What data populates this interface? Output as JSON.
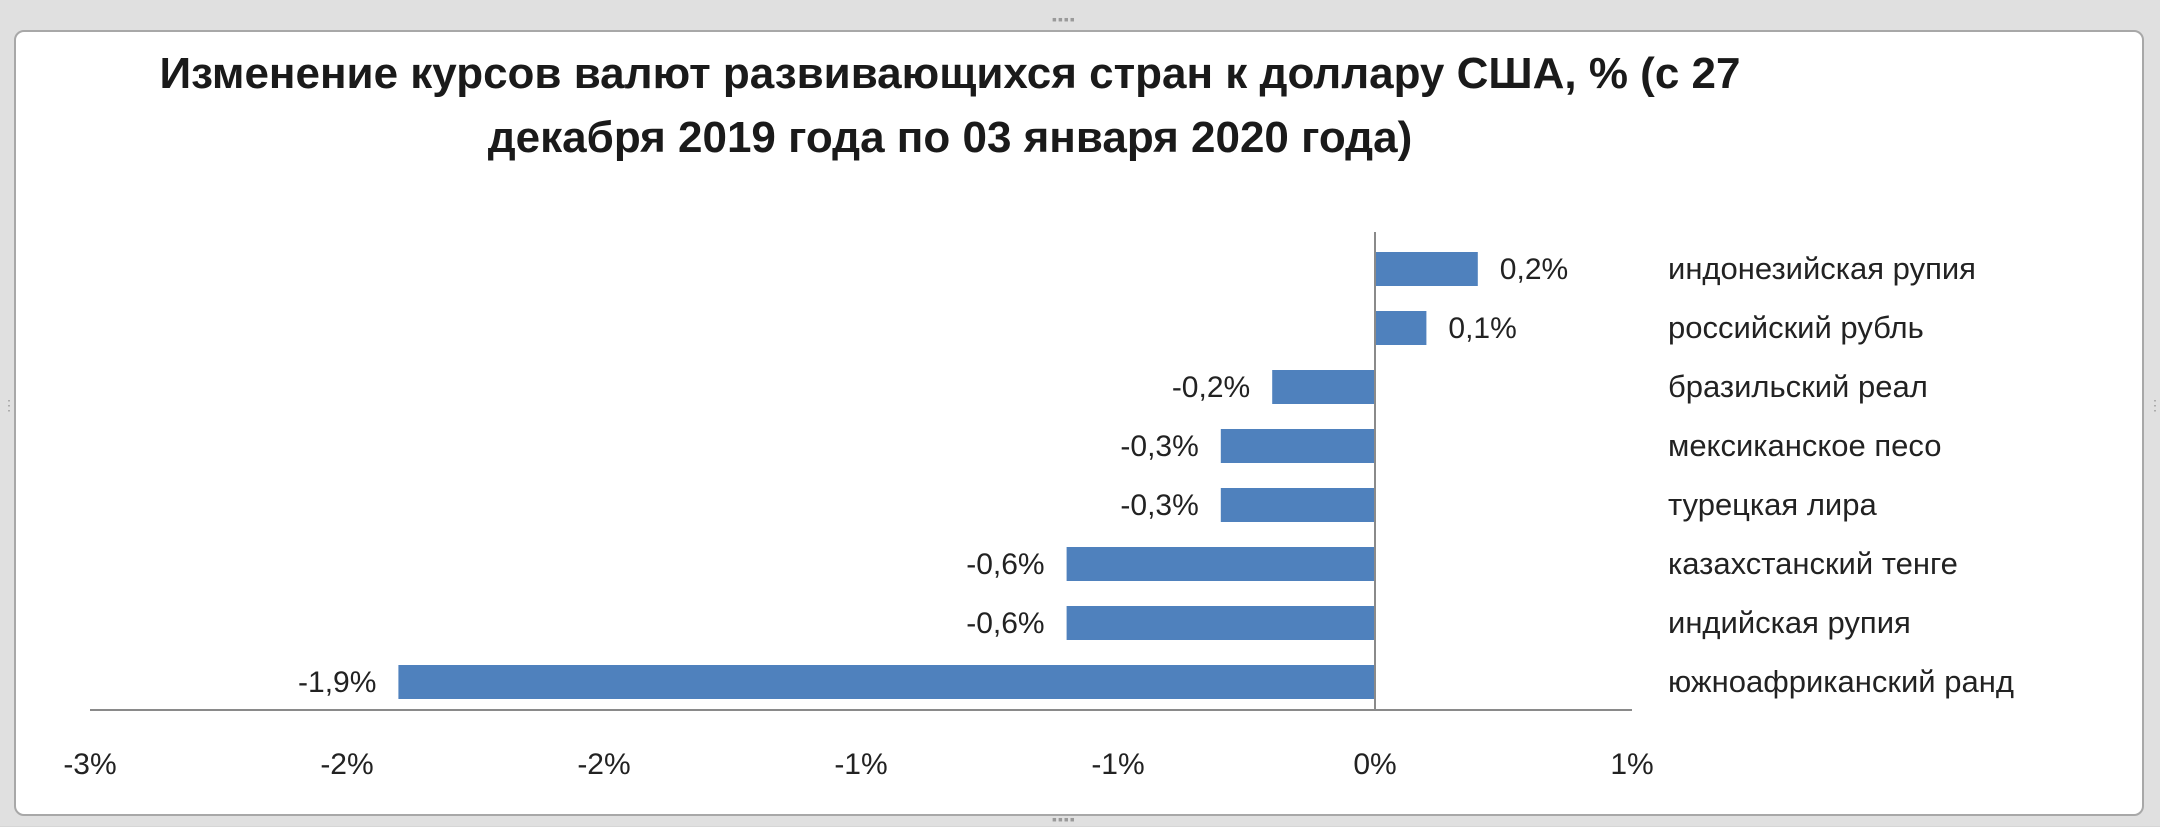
{
  "chart_data": {
    "type": "bar",
    "orientation": "horizontal",
    "title": "Изменение курсов валют развивающихся стран к доллару США, % (с 27 декабря 2019 года по 03 января 2020 года)",
    "title_lines": [
      "Изменение курсов валют развивающихся стран к доллару США, % (с 27",
      "декабря 2019 года по 03 января 2020 года)"
    ],
    "categories": [
      "индонезийская рупия",
      "российский рубль",
      "бразильский реал",
      "мексиканское песо",
      "турецкая лира",
      "казахстанский тенге",
      "индийская рупия",
      "южноафриканский ранд"
    ],
    "values": [
      0.2,
      0.1,
      -0.2,
      -0.3,
      -0.3,
      -0.6,
      -0.6,
      -1.9
    ],
    "data_labels": [
      "0,2%",
      "0,1%",
      "-0,2%",
      "-0,3%",
      "-0,3%",
      "-0,6%",
      "-0,6%",
      "-1,9%"
    ],
    "xlim": [
      -2.5,
      0.5
    ],
    "x_ticks": [
      -2.5,
      -2.0,
      -1.5,
      -1.0,
      -0.5,
      0.0,
      0.5
    ],
    "x_tick_labels": [
      "-3%",
      "-2%",
      "-2%",
      "-1%",
      "-1%",
      "0%",
      "1%"
    ],
    "bar_color": "#4f81bd",
    "grid": false,
    "legend": "none",
    "category_labels_position": "right"
  }
}
